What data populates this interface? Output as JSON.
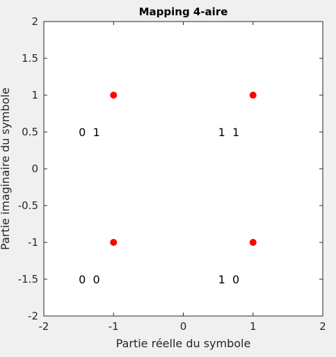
{
  "chart_data": {
    "type": "scatter",
    "title": "Mapping 4-aire",
    "xlabel": "Partie réelle du symbole",
    "ylabel": "Partie imaginaire du symbole",
    "xlim": [
      -2,
      2
    ],
    "ylim": [
      -2,
      2
    ],
    "xticks": [
      "-2",
      "-1",
      "0",
      "1",
      "2"
    ],
    "yticks": [
      "2",
      "1.5",
      "1",
      "0.5",
      "0",
      "-0.5",
      "-1",
      "-1.5",
      "-2"
    ],
    "grid": false,
    "points": [
      {
        "x": -1,
        "y": 1
      },
      {
        "x": 1,
        "y": 1
      },
      {
        "x": -1,
        "y": -1
      },
      {
        "x": 1,
        "y": -1
      }
    ],
    "point_color": "#ff0000",
    "annotations": [
      {
        "text": "0  1",
        "x": -1.5,
        "y": 0.5
      },
      {
        "text": "1  1",
        "x": 0.5,
        "y": 0.5
      },
      {
        "text": "0  0",
        "x": -1.5,
        "y": -1.5
      },
      {
        "text": "1  0",
        "x": 0.5,
        "y": -1.5
      }
    ]
  }
}
